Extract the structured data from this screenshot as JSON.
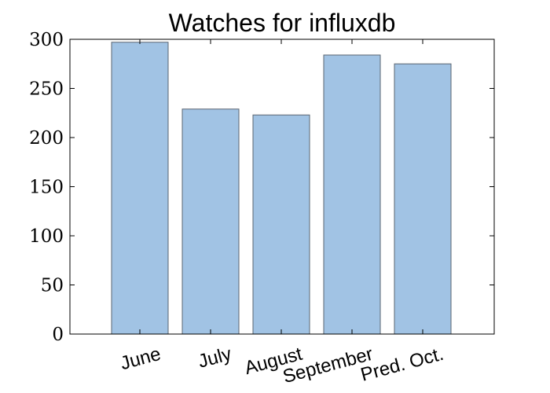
{
  "chart_data": {
    "type": "bar",
    "title": "Watches for influxdb",
    "xlabel": "",
    "ylabel": "",
    "categories": [
      "June",
      "July",
      "August",
      "September",
      "Pred. Oct."
    ],
    "values": [
      297,
      229,
      223,
      284,
      275
    ],
    "ylim": [
      0,
      300
    ],
    "yticks": [
      0,
      50,
      100,
      150,
      200,
      250,
      300
    ],
    "ytick_labels": [
      "0",
      "50",
      "100",
      "150",
      "200",
      "250",
      "300"
    ],
    "grid": false,
    "bar_color": "#a1c3e4",
    "bar_edge_color": "#5a6470"
  }
}
